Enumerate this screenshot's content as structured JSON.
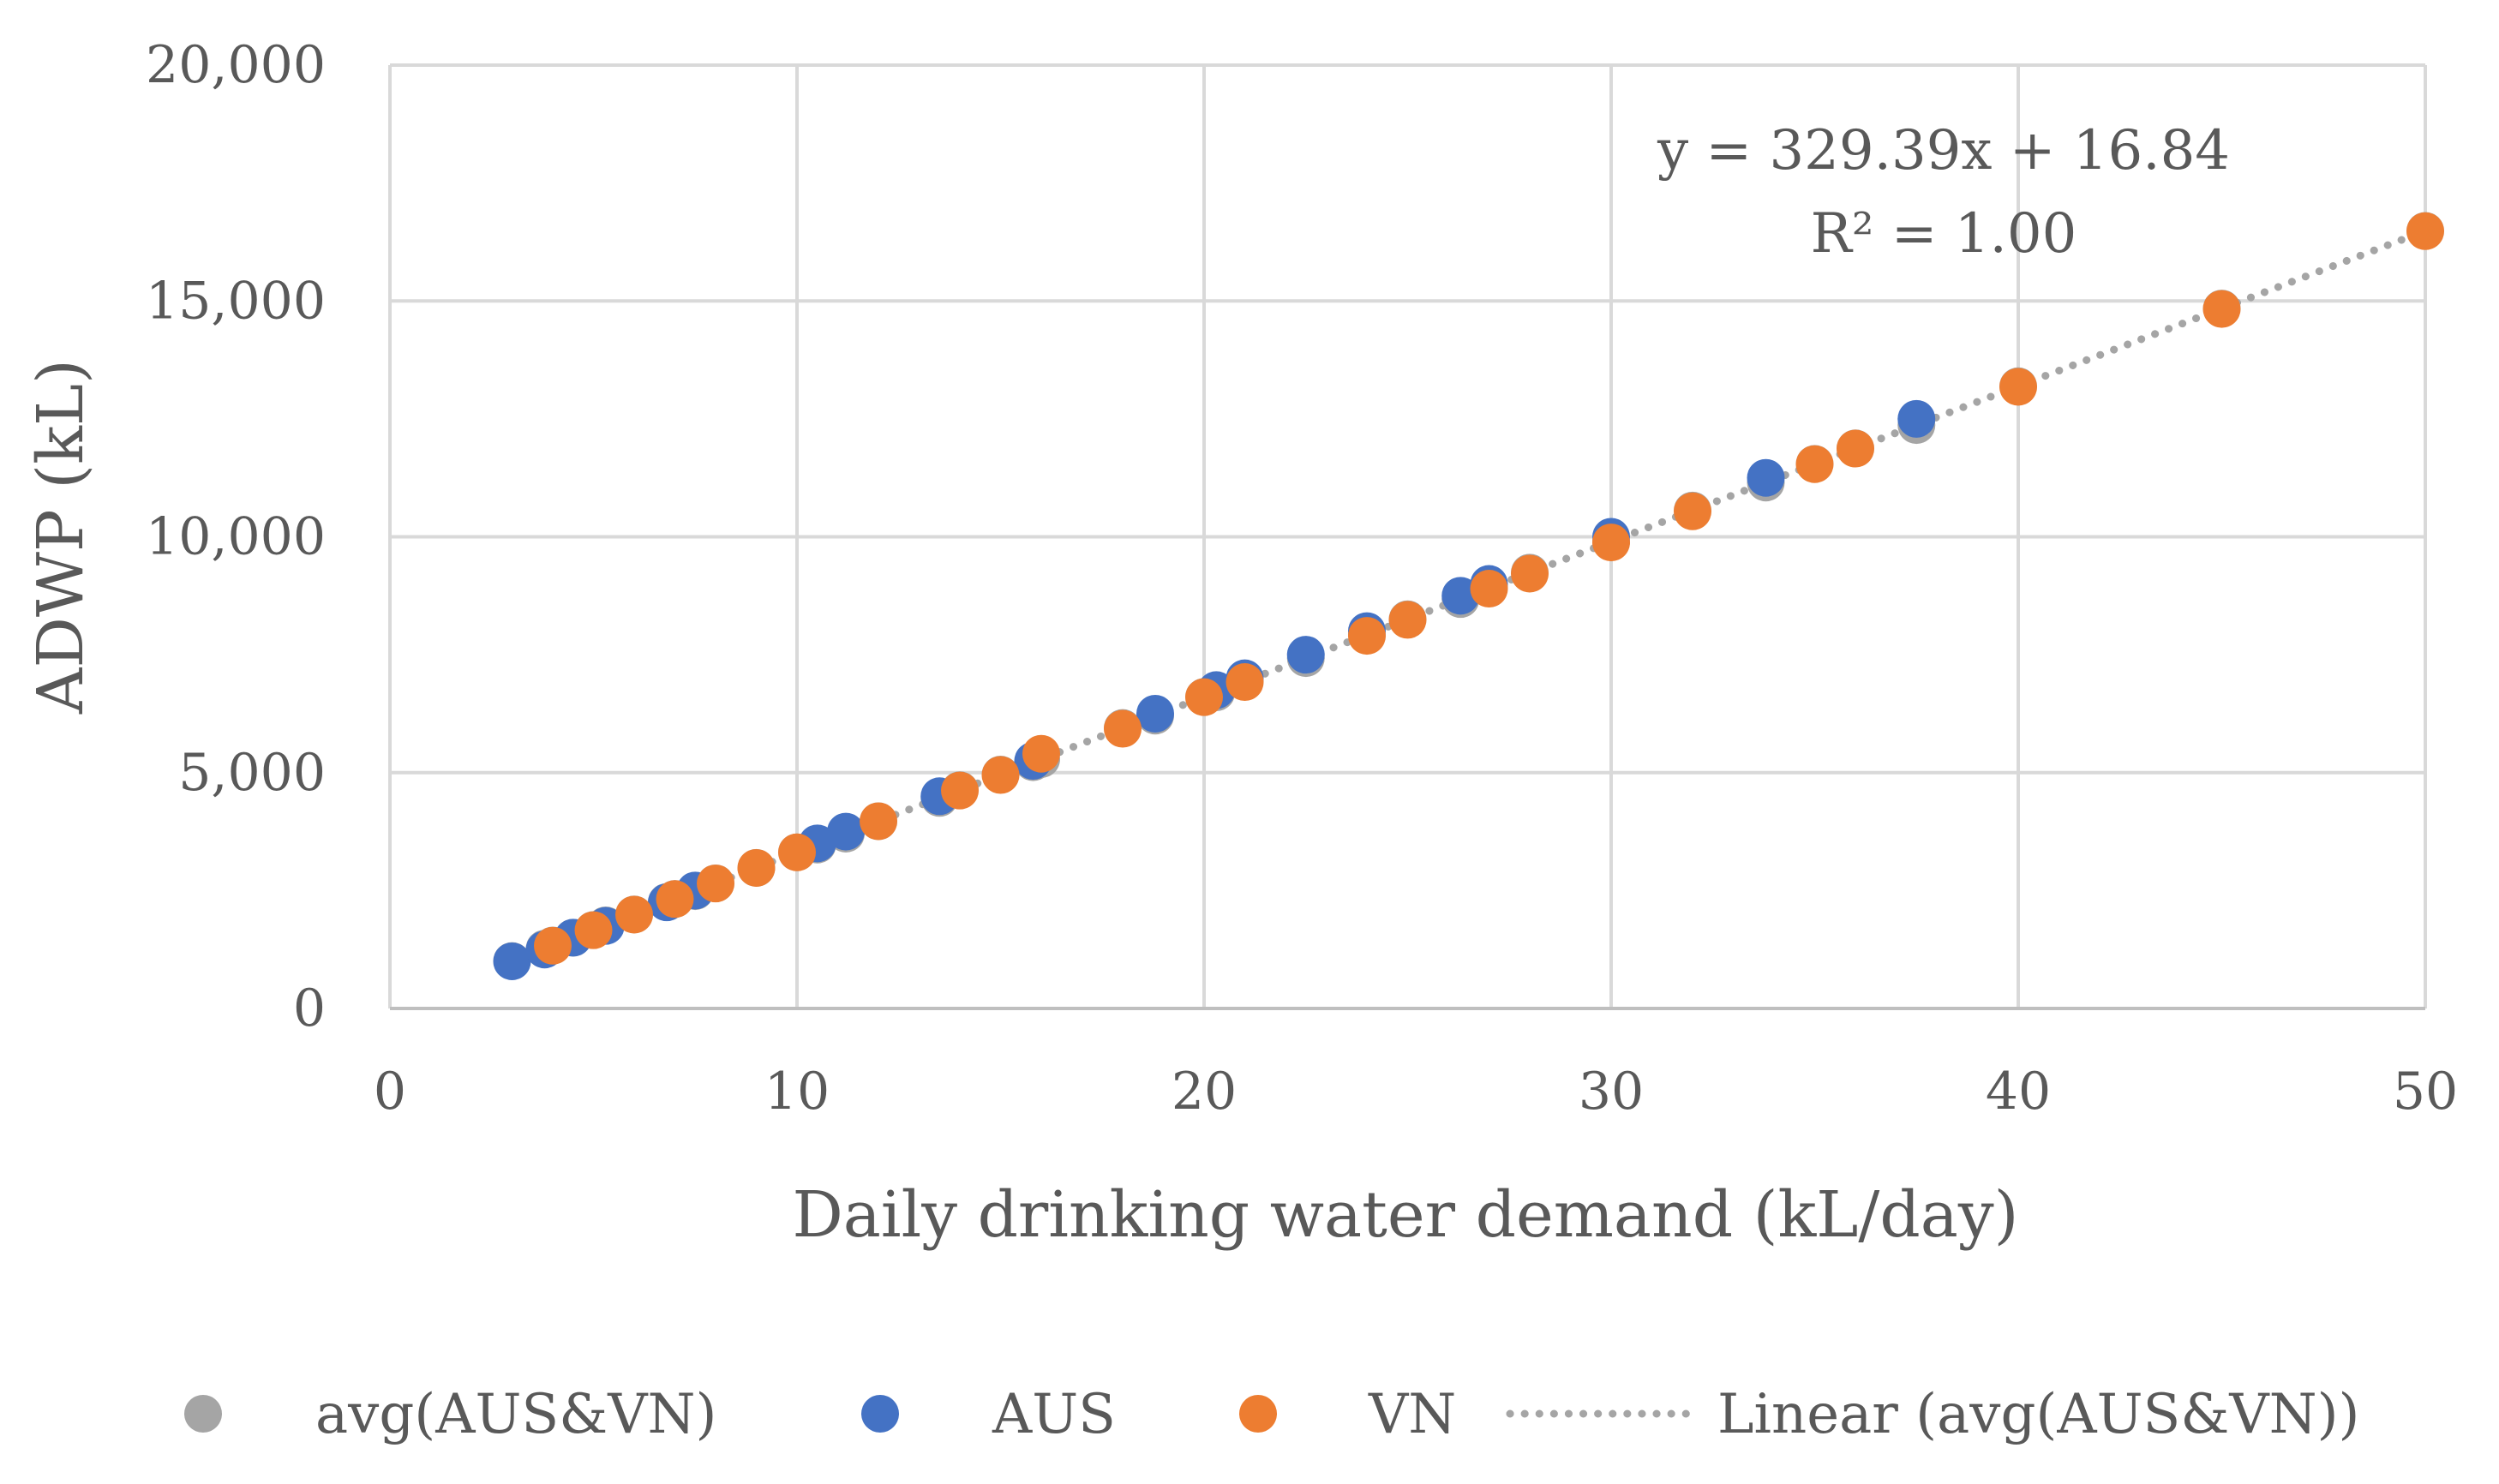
{
  "chart_data": {
    "type": "scatter",
    "title": "",
    "xlabel": "Daily drinking water demand (kL/day)",
    "ylabel": "ADWP (kL)",
    "xlim": [
      0,
      50
    ],
    "ylim": [
      0,
      20000
    ],
    "x_ticks": [
      0,
      10,
      20,
      30,
      40,
      50
    ],
    "x_tick_labels": [
      "0",
      "10",
      "20",
      "30",
      "40",
      "50"
    ],
    "y_ticks": [
      0,
      5000,
      10000,
      15000,
      20000
    ],
    "y_tick_labels": [
      "0",
      "5,000",
      "10,000",
      "15,000",
      "20,000"
    ],
    "grid": true,
    "annotation": {
      "equation": "y = 329.39x + 16.84",
      "r2": "R² = 1.00"
    },
    "series": [
      {
        "name": "avg(AUS&VN)",
        "color": "#a5a5a5",
        "points": [
          [
            3,
            1005
          ],
          [
            3.8,
            1268
          ],
          [
            4,
            1335
          ],
          [
            4.5,
            1499
          ],
          [
            5,
            1664
          ],
          [
            5.3,
            1763
          ],
          [
            6,
            1993
          ],
          [
            6.8,
            2257
          ],
          [
            7,
            2323
          ],
          [
            7.5,
            2487
          ],
          [
            8,
            2652
          ],
          [
            9,
            2981
          ],
          [
            10,
            3311
          ],
          [
            10.5,
            3475
          ],
          [
            11.2,
            3706
          ],
          [
            12,
            3969
          ],
          [
            13.5,
            4464
          ],
          [
            14,
            4628
          ],
          [
            15,
            4958
          ],
          [
            15.8,
            5221
          ],
          [
            16,
            5287
          ],
          [
            18,
            5946
          ],
          [
            18.8,
            6209
          ],
          [
            20,
            6605
          ],
          [
            20.3,
            6703
          ],
          [
            21,
            6934
          ],
          [
            22.5,
            7428
          ],
          [
            24,
            7922
          ],
          [
            25,
            8252
          ],
          [
            26.3,
            8680
          ],
          [
            27,
            8910
          ],
          [
            28,
            9240
          ],
          [
            30,
            9899
          ],
          [
            32,
            10557
          ],
          [
            33.8,
            11150
          ],
          [
            35,
            11546
          ],
          [
            36,
            11875
          ],
          [
            37.5,
            12369
          ],
          [
            40,
            13192
          ],
          [
            45,
            14839
          ],
          [
            50,
            16486
          ]
        ]
      },
      {
        "name": "AUS",
        "color": "#4472c4",
        "points": [
          [
            3,
            1000
          ],
          [
            3.8,
            1250
          ],
          [
            4.5,
            1500
          ],
          [
            5.3,
            1750
          ],
          [
            6.8,
            2250
          ],
          [
            7.5,
            2500
          ],
          [
            10.5,
            3500
          ],
          [
            11.2,
            3750
          ],
          [
            13.5,
            4500
          ],
          [
            15.8,
            5250
          ],
          [
            18.8,
            6250
          ],
          [
            20.3,
            6750
          ],
          [
            21,
            7000
          ],
          [
            22.5,
            7500
          ],
          [
            24,
            8000
          ],
          [
            26.3,
            8750
          ],
          [
            27,
            9000
          ],
          [
            30,
            10000
          ],
          [
            33.8,
            11250
          ],
          [
            37.5,
            12500
          ]
        ]
      },
      {
        "name": "VN",
        "color": "#ed7d31",
        "points": [
          [
            4,
            1330
          ],
          [
            5,
            1660
          ],
          [
            6,
            1990
          ],
          [
            7,
            2320
          ],
          [
            8,
            2650
          ],
          [
            9,
            2980
          ],
          [
            10,
            3310
          ],
          [
            12,
            3970
          ],
          [
            14,
            4620
          ],
          [
            15,
            4950
          ],
          [
            16,
            5400
          ],
          [
            18,
            5930
          ],
          [
            20,
            6600
          ],
          [
            21,
            6920
          ],
          [
            24,
            7900
          ],
          [
            25,
            8240
          ],
          [
            27,
            8900
          ],
          [
            28,
            9220
          ],
          [
            30,
            9880
          ],
          [
            32,
            10540
          ],
          [
            35,
            11540
          ],
          [
            36,
            11870
          ],
          [
            40,
            13180
          ],
          [
            45,
            14830
          ],
          [
            50,
            16480
          ]
        ]
      }
    ],
    "trendline": {
      "name": "Linear (avg(AUS&VN))",
      "slope": 329.39,
      "intercept": 16.84,
      "x_range": [
        3,
        50
      ],
      "color": "#a5a5a5",
      "style": "dotted"
    },
    "legend": {
      "placement": "bottom",
      "entries": [
        {
          "label": "avg(AUS&VN)",
          "marker": "circle",
          "color": "#a5a5a5"
        },
        {
          "label": "AUS",
          "marker": "circle",
          "color": "#4472c4"
        },
        {
          "label": "VN",
          "marker": "circle",
          "color": "#ed7d31"
        },
        {
          "label": "Linear (avg(AUS&VN))",
          "marker": "dotted-line",
          "color": "#a5a5a5"
        }
      ]
    }
  }
}
